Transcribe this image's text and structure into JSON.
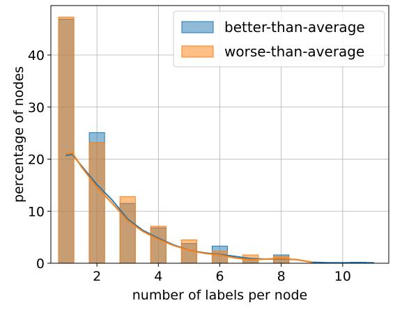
{
  "chart_data": {
    "type": "bar",
    "title": "",
    "xlabel": "number of labels per node",
    "ylabel": "percentage of nodes",
    "xlim": [
      0.5,
      11.5
    ],
    "ylim": [
      0,
      49.5
    ],
    "x_ticks": [
      2,
      4,
      6,
      8,
      10
    ],
    "y_ticks": [
      0,
      10,
      20,
      30,
      40
    ],
    "grid": true,
    "legend_position": "top-right",
    "bin_width": 0.5,
    "series": [
      {
        "name": "better-than-average",
        "color": "#1f77b4",
        "fill_color": "#1f77b4",
        "fill_alpha": 0.5,
        "bars": [
          {
            "x": 1.0,
            "value": 46.9
          },
          {
            "x": 2.0,
            "value": 25.1
          },
          {
            "x": 3.0,
            "value": 11.5
          },
          {
            "x": 4.0,
            "value": 6.8
          },
          {
            "x": 5.0,
            "value": 3.8
          },
          {
            "x": 6.0,
            "value": 3.3
          },
          {
            "x": 7.0,
            "value": 0.8
          },
          {
            "x": 8.0,
            "value": 1.6
          },
          {
            "x": 10.5,
            "value": 0.2
          }
        ],
        "kde": [
          [
            1.0,
            20.7
          ],
          [
            1.2,
            20.9
          ],
          [
            1.5,
            18.7
          ],
          [
            2.0,
            15.1
          ],
          [
            2.5,
            12.1
          ],
          [
            3.0,
            8.5
          ],
          [
            3.5,
            6.3
          ],
          [
            4.0,
            4.8
          ],
          [
            4.5,
            3.5
          ],
          [
            5.0,
            2.5
          ],
          [
            5.5,
            2.0
          ],
          [
            6.0,
            1.7
          ],
          [
            6.5,
            1.3
          ],
          [
            7.0,
            0.9
          ],
          [
            7.5,
            0.8
          ],
          [
            8.0,
            0.8
          ],
          [
            8.5,
            0.7
          ],
          [
            9.0,
            0.2
          ],
          [
            9.5,
            0.1
          ],
          [
            10.0,
            0.1
          ],
          [
            10.5,
            0.1
          ],
          [
            11.0,
            0.1
          ]
        ]
      },
      {
        "name": "worse-than-average",
        "color": "#ff7f0e",
        "fill_color": "#ff7f0e",
        "fill_alpha": 0.5,
        "bars": [
          {
            "x": 1.0,
            "value": 47.3
          },
          {
            "x": 2.0,
            "value": 23.2
          },
          {
            "x": 3.0,
            "value": 12.8
          },
          {
            "x": 4.0,
            "value": 7.1
          },
          {
            "x": 5.0,
            "value": 4.5
          },
          {
            "x": 6.0,
            "value": 2.3
          },
          {
            "x": 7.0,
            "value": 1.6
          },
          {
            "x": 8.0,
            "value": 1.3
          }
        ],
        "kde": [
          [
            1.0,
            21.0
          ],
          [
            1.2,
            21.2
          ],
          [
            1.5,
            18.5
          ],
          [
            2.0,
            14.6
          ],
          [
            2.5,
            11.5
          ],
          [
            3.0,
            8.2
          ],
          [
            3.5,
            6.1
          ],
          [
            4.0,
            4.6
          ],
          [
            4.5,
            3.4
          ],
          [
            5.0,
            2.5
          ],
          [
            5.5,
            1.9
          ],
          [
            6.0,
            1.6
          ],
          [
            6.5,
            1.0
          ],
          [
            7.0,
            0.7
          ],
          [
            7.5,
            0.8
          ],
          [
            8.0,
            0.9
          ],
          [
            8.5,
            0.7
          ],
          [
            9.0,
            0.2
          ]
        ]
      }
    ]
  }
}
